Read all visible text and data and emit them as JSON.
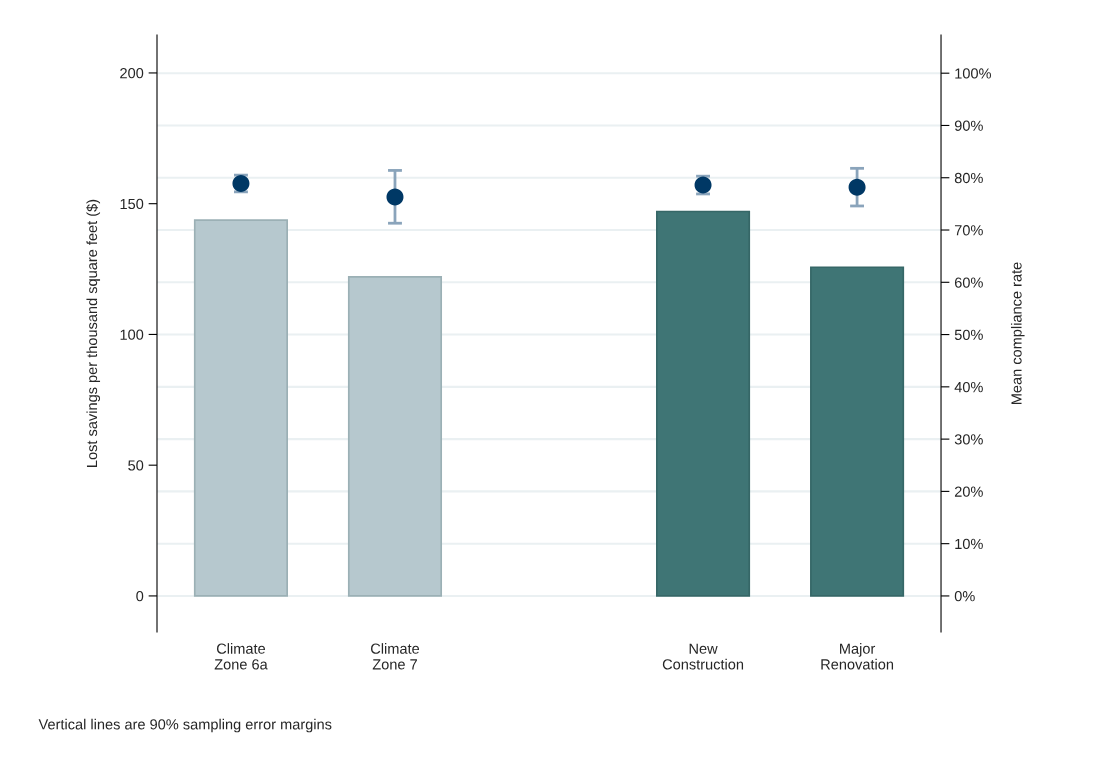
{
  "chart_data": {
    "type": "bar",
    "categories": [
      "Climate\nZone 6a",
      "Climate\nZone 7",
      null,
      "New\nConstruction",
      "Major\nRenovation"
    ],
    "ylabel": "Lost savings per thousand square feet ($)",
    "y2label": "Mean compliance rate",
    "series": [
      {
        "colors": [
          "#b6c8ce",
          "#b6c8ce",
          null,
          "#3f7575",
          "#3f7575"
        ],
        "values": [
          143.7,
          122.0,
          null,
          147.0,
          125.7
        ]
      },
      {
        "type": "scatter",
        "axis": "y2",
        "color": "#003865",
        "marker": "circle",
        "values": [
          78.9,
          76.3,
          null,
          78.6,
          78.2
        ],
        "errors": [
          [
            77.3,
            80.5
          ],
          [
            71.3,
            81.4
          ],
          null,
          [
            76.9,
            80.3
          ],
          [
            74.6,
            81.8
          ]
        ]
      }
    ],
    "ylim": [
      -13.8,
      214.5
    ],
    "yticks": [
      0,
      50,
      100,
      150,
      200
    ],
    "y2lim": [
      -6.9,
      107.3
    ],
    "y2ticks": [
      {
        "value": 0,
        "label": "0%"
      },
      {
        "value": 10,
        "label": "10%"
      },
      {
        "value": 20,
        "label": "20%"
      },
      {
        "value": 30,
        "label": "30%"
      },
      {
        "value": 40,
        "label": "40%"
      },
      {
        "value": 50,
        "label": "50%"
      },
      {
        "value": 60,
        "label": "60%"
      },
      {
        "value": 70,
        "label": "70%"
      },
      {
        "value": 80,
        "label": "80%"
      },
      {
        "value": 90,
        "label": "90%"
      },
      {
        "value": 100,
        "label": "100%"
      }
    ],
    "grid": "y2",
    "legend": false,
    "annotations": [
      "Vertical lines are 90% sampling error margins"
    ]
  }
}
